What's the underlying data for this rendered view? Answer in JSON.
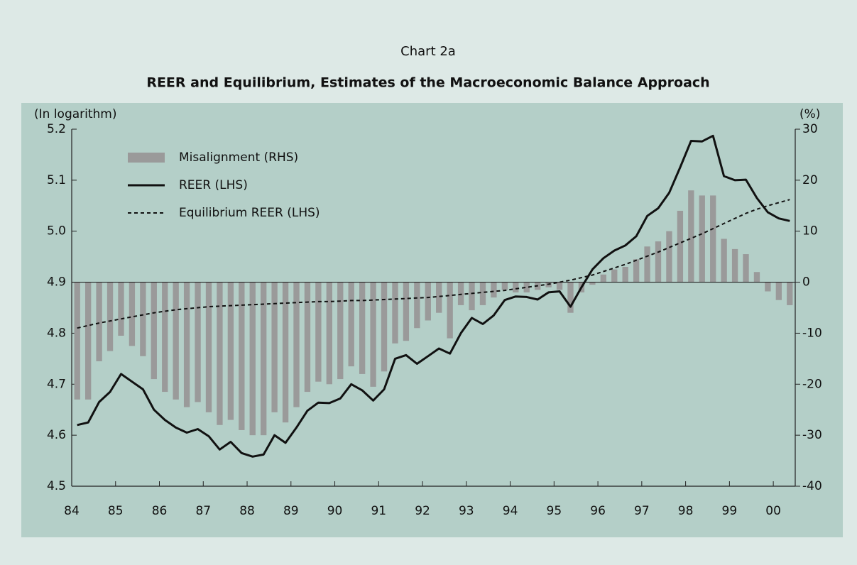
{
  "chart_data": {
    "type": "bar-line",
    "subtitle": "Chart 2a",
    "title": "REER and Equilibrium, Estimates of the Macroeconomic Balance Approach",
    "y_label": "(In logarithm)",
    "y2_label": "(%)",
    "categories": [
      "84",
      null,
      null,
      null,
      "85",
      null,
      null,
      null,
      "86",
      null,
      null,
      null,
      "87",
      null,
      null,
      null,
      "88",
      null,
      null,
      null,
      "89",
      null,
      null,
      null,
      "90",
      null,
      null,
      null,
      "91",
      null,
      null,
      null,
      "92",
      null,
      null,
      null,
      "93",
      null,
      null,
      null,
      "94",
      null,
      null,
      null,
      "95",
      null,
      null,
      null,
      "96",
      null,
      null,
      null,
      "97",
      null,
      null,
      null,
      "98",
      null,
      null,
      null,
      "99",
      null,
      null,
      null,
      "00",
      null
    ],
    "series": [
      {
        "name": "Misalignment (RHS)",
        "kind": "bar",
        "axis": "y2",
        "color": "#9a9a9a",
        "values": [
          -23,
          -23,
          -15.5,
          -13.5,
          -10.5,
          -12.5,
          -14.5,
          -19,
          -21.5,
          -23,
          -24.5,
          -23.5,
          -25.5,
          -28,
          -27,
          -29,
          -30,
          -30,
          -25.5,
          -27.5,
          -24.5,
          -21.5,
          -19.5,
          -20,
          -19,
          -16.5,
          -18,
          -20.5,
          -17.5,
          -12,
          -11.5,
          -9,
          -7.5,
          -6,
          -11,
          -4.5,
          -5.5,
          -4.5,
          -3,
          -1.5,
          -2,
          -2,
          -1.5,
          -1,
          -1.5,
          -6,
          -2,
          -0.5,
          1.5,
          2.5,
          3,
          4.5,
          7,
          8,
          10,
          14,
          18,
          17,
          17,
          8.5,
          6.5,
          5.5,
          2,
          -1.8,
          -3.5,
          -4.5
        ]
      },
      {
        "name": "REER (LHS)",
        "kind": "line",
        "color": "#111111",
        "values": [
          4.62,
          4.625,
          4.665,
          4.685,
          4.72,
          4.705,
          4.69,
          4.65,
          4.63,
          4.615,
          4.605,
          4.612,
          4.598,
          4.572,
          4.587,
          4.565,
          4.558,
          4.562,
          4.6,
          4.585,
          4.615,
          4.648,
          4.664,
          4.663,
          4.672,
          4.7,
          4.688,
          4.668,
          4.69,
          4.75,
          4.757,
          4.74,
          4.755,
          4.77,
          4.76,
          4.8,
          4.83,
          4.818,
          4.835,
          4.865,
          4.872,
          4.871,
          4.866,
          4.88,
          4.882,
          4.852,
          4.89,
          4.925,
          4.947,
          4.962,
          4.972,
          4.99,
          5.03,
          5.045,
          5.075,
          5.125,
          5.177,
          5.176,
          5.187,
          5.108,
          5.1,
          5.101,
          5.065,
          5.037,
          5.025,
          5.02
        ]
      },
      {
        "name": "Equilibrium REER (LHS)",
        "kind": "dashed",
        "color": "#111111",
        "values": [
          4.81,
          4.815,
          4.82,
          4.824,
          4.828,
          4.832,
          4.836,
          4.84,
          4.843,
          4.846,
          4.848,
          4.85,
          4.852,
          4.853,
          4.854,
          4.855,
          4.856,
          4.857,
          4.858,
          4.859,
          4.86,
          4.861,
          4.862,
          4.862,
          4.863,
          4.864,
          4.864,
          4.865,
          4.866,
          4.867,
          4.868,
          4.869,
          4.87,
          4.872,
          4.874,
          4.876,
          4.878,
          4.88,
          4.882,
          4.884,
          4.887,
          4.89,
          4.893,
          4.896,
          4.9,
          4.904,
          4.909,
          4.914,
          4.921,
          4.928,
          4.935,
          4.943,
          4.951,
          4.959,
          4.968,
          4.977,
          4.986,
          4.995,
          5.005,
          5.015,
          5.025,
          5.035,
          5.043,
          5.05,
          5.056,
          5.062
        ]
      }
    ],
    "ylim": [
      4.5,
      5.2
    ],
    "yticks": [
      4.5,
      4.6,
      4.7,
      4.8,
      4.9,
      {
        "value": 5,
        "label": "5.0"
      },
      5.1,
      5.2
    ],
    "y2lim": [
      -40,
      30
    ],
    "y2ticks": [
      -40,
      -30,
      -20,
      -10,
      0,
      10,
      20,
      30
    ],
    "legend": "upper left"
  }
}
